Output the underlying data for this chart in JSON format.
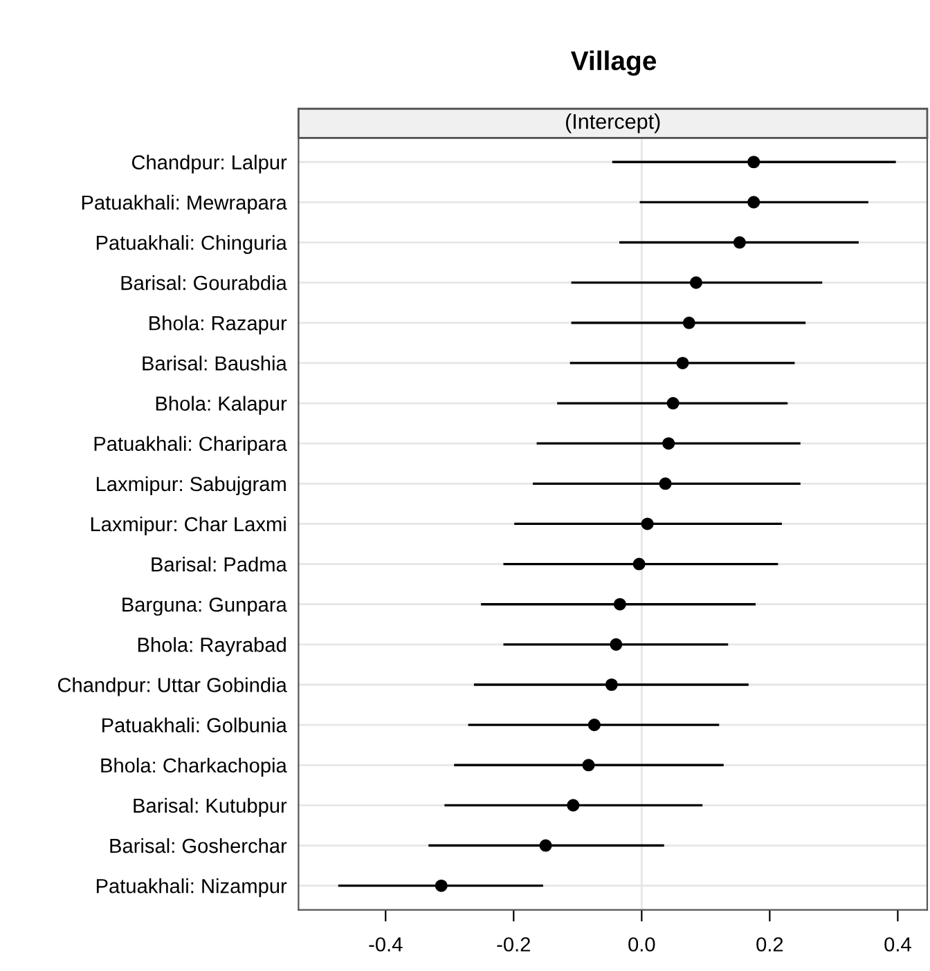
{
  "chart_data": {
    "type": "scatter",
    "title": "Village",
    "subtitle": "(Intercept)",
    "categories": [
      "Chandpur: Lalpur",
      "Patuakhali: Mewrapara",
      "Patuakhali: Chinguria",
      "Barisal: Gourabdia",
      "Bhola: Razapur",
      "Barisal: Baushia",
      "Bhola: Kalapur",
      "Patuakhali: Charipara",
      "Laxmipur: Sabujgram",
      "Laxmipur: Char Laxmi",
      "Barisal: Padma",
      "Barguna: Gunpara",
      "Bhola: Rayrabad",
      "Chandpur: Uttar Gobindia",
      "Patuakhali: Golbunia",
      "Bhola: Charkachopia",
      "Barisal: Kutubpur",
      "Barisal: Gosherchar",
      "Patuakhali: Nizampur"
    ],
    "values": [
      0.175,
      0.175,
      0.153,
      0.085,
      0.074,
      0.064,
      0.049,
      0.042,
      0.037,
      0.009,
      -0.004,
      -0.034,
      -0.04,
      -0.047,
      -0.074,
      -0.083,
      -0.107,
      -0.15,
      -0.313
    ],
    "errors": [
      [
        -0.046,
        0.397
      ],
      [
        -0.003,
        0.354
      ],
      [
        -0.035,
        0.339
      ],
      [
        -0.11,
        0.282
      ],
      [
        -0.11,
        0.256
      ],
      [
        -0.112,
        0.239
      ],
      [
        -0.132,
        0.228
      ],
      [
        -0.164,
        0.248
      ],
      [
        -0.17,
        0.248
      ],
      [
        -0.199,
        0.219
      ],
      [
        -0.216,
        0.213
      ],
      [
        -0.251,
        0.178
      ],
      [
        -0.216,
        0.135
      ],
      [
        -0.262,
        0.167
      ],
      [
        -0.271,
        0.121
      ],
      [
        -0.293,
        0.128
      ],
      [
        -0.308,
        0.095
      ],
      [
        -0.333,
        0.035
      ],
      [
        -0.474,
        -0.154
      ]
    ],
    "color": "#000000",
    "marker": "circle",
    "orientation": "horizontal",
    "xlim": [
      -0.536,
      0.446
    ],
    "xticks": [
      {
        "value": -0.4,
        "label": "-0.4"
      },
      {
        "value": -0.2,
        "label": "-0.2"
      },
      {
        "value": 0.0,
        "label": "0.0"
      },
      {
        "value": 0.2,
        "label": "0.2"
      },
      {
        "value": 0.4,
        "label": "0.4"
      }
    ],
    "grid": "y",
    "ref_lines": [
      {
        "axis": "x",
        "value": 0,
        "label": null,
        "color": "#e6e6e6"
      }
    ]
  }
}
